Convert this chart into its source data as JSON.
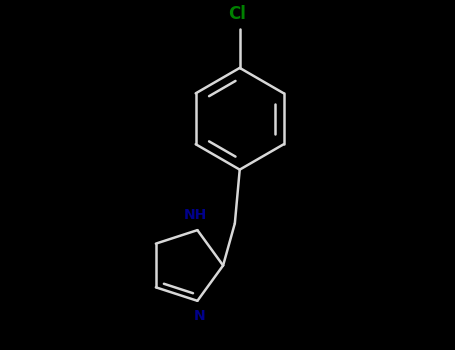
{
  "background_color": "#000000",
  "bond_color": "#d8d8d8",
  "cl_color": "#008000",
  "n_color": "#00008b",
  "line_width": 1.8,
  "figsize": [
    4.55,
    3.5
  ],
  "dpi": 100,
  "cl_label": "Cl",
  "nh_label": "NH",
  "n_label": "N"
}
